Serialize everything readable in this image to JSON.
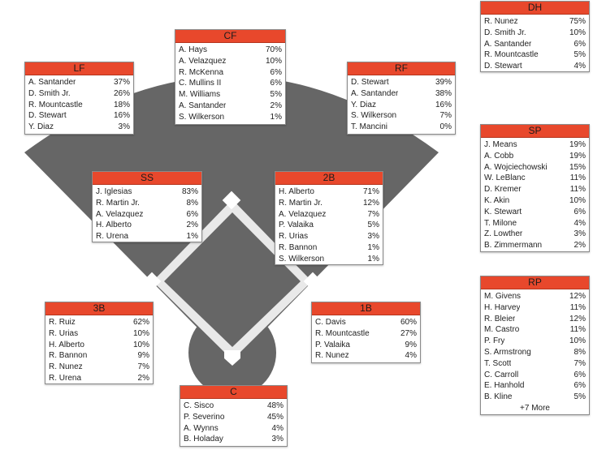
{
  "positions": {
    "cf": {
      "title": "CF",
      "rows": [
        {
          "name": "A. Hays",
          "pct": "70%"
        },
        {
          "name": "A. Velazquez",
          "pct": "10%"
        },
        {
          "name": "R. McKenna",
          "pct": "6%"
        },
        {
          "name": "C. Mullins II",
          "pct": "6%"
        },
        {
          "name": "M. Williams",
          "pct": "5%"
        },
        {
          "name": "A. Santander",
          "pct": "2%"
        },
        {
          "name": "S. Wilkerson",
          "pct": "1%"
        }
      ]
    },
    "lf": {
      "title": "LF",
      "rows": [
        {
          "name": "A. Santander",
          "pct": "37%"
        },
        {
          "name": "D. Smith Jr.",
          "pct": "26%"
        },
        {
          "name": "R. Mountcastle",
          "pct": "18%"
        },
        {
          "name": "D. Stewart",
          "pct": "16%"
        },
        {
          "name": "Y. Diaz",
          "pct": "3%"
        }
      ]
    },
    "rf": {
      "title": "RF",
      "rows": [
        {
          "name": "D. Stewart",
          "pct": "39%"
        },
        {
          "name": "A. Santander",
          "pct": "38%"
        },
        {
          "name": "Y. Diaz",
          "pct": "16%"
        },
        {
          "name": "S. Wilkerson",
          "pct": "7%"
        },
        {
          "name": "T. Mancini",
          "pct": "0%"
        }
      ]
    },
    "ss": {
      "title": "SS",
      "rows": [
        {
          "name": "J. Iglesias",
          "pct": "83%"
        },
        {
          "name": "R. Martin Jr.",
          "pct": "8%"
        },
        {
          "name": "A. Velazquez",
          "pct": "6%"
        },
        {
          "name": "H. Alberto",
          "pct": "2%"
        },
        {
          "name": "R. Urena",
          "pct": "1%"
        }
      ]
    },
    "second_base": {
      "title": "2B",
      "rows": [
        {
          "name": "H. Alberto",
          "pct": "71%"
        },
        {
          "name": "R. Martin Jr.",
          "pct": "12%"
        },
        {
          "name": "A. Velazquez",
          "pct": "7%"
        },
        {
          "name": "P. Valaika",
          "pct": "5%"
        },
        {
          "name": "R. Urias",
          "pct": "3%"
        },
        {
          "name": "R. Bannon",
          "pct": "1%"
        },
        {
          "name": "S. Wilkerson",
          "pct": "1%"
        }
      ]
    },
    "third_base": {
      "title": "3B",
      "rows": [
        {
          "name": "R. Ruiz",
          "pct": "62%"
        },
        {
          "name": "R. Urias",
          "pct": "10%"
        },
        {
          "name": "H. Alberto",
          "pct": "10%"
        },
        {
          "name": "R. Bannon",
          "pct": "9%"
        },
        {
          "name": "R. Nunez",
          "pct": "7%"
        },
        {
          "name": "R. Urena",
          "pct": "2%"
        }
      ]
    },
    "first_base": {
      "title": "1B",
      "rows": [
        {
          "name": "C. Davis",
          "pct": "60%"
        },
        {
          "name": "R. Mountcastle",
          "pct": "27%"
        },
        {
          "name": "P. Valaika",
          "pct": "9%"
        },
        {
          "name": "R. Nunez",
          "pct": "4%"
        }
      ]
    },
    "catcher": {
      "title": "C",
      "rows": [
        {
          "name": "C. Sisco",
          "pct": "48%"
        },
        {
          "name": "P. Severino",
          "pct": "45%"
        },
        {
          "name": "A. Wynns",
          "pct": "4%"
        },
        {
          "name": "B. Holaday",
          "pct": "3%"
        }
      ]
    },
    "dh": {
      "title": "DH",
      "rows": [
        {
          "name": "R. Nunez",
          "pct": "75%"
        },
        {
          "name": "D. Smith Jr.",
          "pct": "10%"
        },
        {
          "name": "A. Santander",
          "pct": "6%"
        },
        {
          "name": "R. Mountcastle",
          "pct": "5%"
        },
        {
          "name": "D. Stewart",
          "pct": "4%"
        }
      ]
    },
    "sp": {
      "title": "SP",
      "rows": [
        {
          "name": "J. Means",
          "pct": "19%"
        },
        {
          "name": "A. Cobb",
          "pct": "19%"
        },
        {
          "name": "A. Wojciechowski",
          "pct": "15%"
        },
        {
          "name": "W. LeBlanc",
          "pct": "11%"
        },
        {
          "name": "D. Kremer",
          "pct": "11%"
        },
        {
          "name": "K. Akin",
          "pct": "10%"
        },
        {
          "name": "K. Stewart",
          "pct": "6%"
        },
        {
          "name": "T. Milone",
          "pct": "4%"
        },
        {
          "name": "Z. Lowther",
          "pct": "3%"
        },
        {
          "name": "B. Zimmermann",
          "pct": "2%"
        }
      ]
    },
    "rp": {
      "title": "RP",
      "rows": [
        {
          "name": "M. Givens",
          "pct": "12%"
        },
        {
          "name": "H. Harvey",
          "pct": "11%"
        },
        {
          "name": "R. Bleier",
          "pct": "12%"
        },
        {
          "name": "M. Castro",
          "pct": "11%"
        },
        {
          "name": "P. Fry",
          "pct": "10%"
        },
        {
          "name": "S. Armstrong",
          "pct": "8%"
        },
        {
          "name": "T. Scott",
          "pct": "7%"
        },
        {
          "name": "C. Carroll",
          "pct": "6%"
        },
        {
          "name": "E. Hanhold",
          "pct": "6%"
        },
        {
          "name": "B. Kline",
          "pct": "5%"
        }
      ],
      "more": "+7 More"
    }
  },
  "colors": {
    "header": "#e8482c",
    "field": "#666666",
    "base": "#ffffff"
  }
}
